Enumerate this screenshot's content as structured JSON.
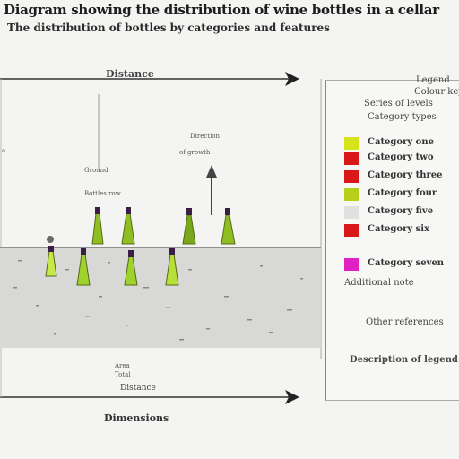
{
  "header": {
    "title": "Diagram showing the distribution of wine bottles in a cellar",
    "subtitle": "The distribution of bottles by categories and features"
  },
  "diagram": {
    "top_axis_label": "Distance",
    "bottom_axis_label": "Distance",
    "footer_label": "Dimensions",
    "center_label": "Area",
    "center_sublabel": "Total",
    "left_label": "Ground",
    "left_sublabel": "Bottles row",
    "left_marker": "a",
    "arrow_label": "Direction",
    "arrow_sublabel": "of growth"
  },
  "legend": {
    "header_lines": [
      "Legend",
      "Colour key",
      "Series of levels",
      "Category types"
    ],
    "items": [
      {
        "color": "#d6e21a",
        "label": "Category one"
      },
      {
        "color": "#d81818",
        "label": "Category two"
      },
      {
        "color": "#d81818",
        "label": "Category three"
      },
      {
        "color": "#b8cf1a",
        "label": "Category four"
      },
      {
        "color": "#e0e0e0",
        "label": "Category five"
      },
      {
        "color": "#d81818",
        "label": "Category six"
      },
      {
        "color": "#e020c0",
        "label": "Category seven"
      }
    ],
    "extra_lines": [
      "Additional note",
      "Other references"
    ],
    "footer": "Description of legend"
  },
  "colors": {
    "bottle_green": "#7fae1f",
    "bottle_cap": "#3a1e44",
    "band": "#d7d7d5"
  }
}
